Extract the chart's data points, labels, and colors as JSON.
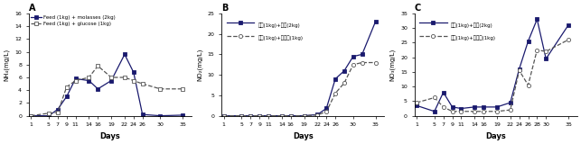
{
  "panel_A": {
    "title": "A",
    "ylabel": "NH₄(mg/L)",
    "xlabel": "Days",
    "ylim": [
      0,
      16
    ],
    "yticks": [
      0,
      2,
      4,
      6,
      8,
      10,
      12,
      14,
      16
    ],
    "xticks": [
      1,
      5,
      7,
      9,
      11,
      14,
      16,
      19,
      22,
      24,
      26,
      30,
      35
    ],
    "series1": {
      "label": "Feed (1kg) + molasses (2kg)",
      "x": [
        1,
        5,
        7,
        9,
        11,
        14,
        16,
        19,
        22,
        24,
        26,
        30,
        35
      ],
      "y": [
        0,
        0,
        1.0,
        3.0,
        5.8,
        5.5,
        4.2,
        5.5,
        9.6,
        6.8,
        0.2,
        0,
        0.1
      ],
      "color": "#1a1a6e",
      "linestyle": "-",
      "marker": "s",
      "markerfacecolor": "#1a1a6e",
      "markersize": 3.5
    },
    "series2": {
      "label": "Feed (1kg) + glucose (1kg)",
      "x": [
        1,
        5,
        7,
        9,
        11,
        14,
        16,
        19,
        22,
        24,
        26,
        30,
        35
      ],
      "y": [
        0,
        0.4,
        0.5,
        4.5,
        5.5,
        6.0,
        7.8,
        6.0,
        6.0,
        5.5,
        5.0,
        4.2,
        4.2
      ],
      "color": "#555555",
      "linestyle": "--",
      "marker": "s",
      "markerfacecolor": "white",
      "markersize": 3.5
    }
  },
  "panel_B": {
    "title": "B",
    "ylabel": "NO₂(mg/L)",
    "xlabel": "Days",
    "ylim": [
      0,
      25
    ],
    "yticks": [
      0,
      5,
      10,
      15,
      20,
      25
    ],
    "xticks": [
      1,
      5,
      7,
      9,
      11,
      14,
      16,
      19,
      22,
      24,
      26,
      30,
      35
    ],
    "series1": {
      "label": "사료(1kg)+당밀(2kg)",
      "x": [
        1,
        5,
        7,
        9,
        11,
        14,
        16,
        19,
        22,
        24,
        26,
        28,
        30,
        32,
        35
      ],
      "y": [
        0,
        0,
        0,
        0,
        0,
        0,
        0,
        0,
        0.3,
        1.8,
        9.0,
        11.0,
        14.5,
        15.0,
        23.0
      ],
      "color": "#1a1a6e",
      "linestyle": "-",
      "marker": "s",
      "markerfacecolor": "#1a1a6e",
      "markersize": 3.0
    },
    "series2": {
      "label": "사료(1kg)+포도당(1kg)",
      "x": [
        1,
        5,
        7,
        9,
        11,
        14,
        16,
        19,
        22,
        24,
        26,
        28,
        30,
        32,
        35
      ],
      "y": [
        0,
        0,
        0,
        0,
        0,
        0,
        0,
        0,
        0.2,
        1.0,
        5.5,
        8.0,
        12.5,
        13.0,
        13.0
      ],
      "color": "#555555",
      "linestyle": "--",
      "marker": "o",
      "markerfacecolor": "white",
      "markersize": 3.0
    }
  },
  "panel_C": {
    "title": "C",
    "ylabel": "NO₃(mg/L)",
    "xlabel": "Days",
    "ylim": [
      0,
      35
    ],
    "yticks": [
      0,
      5,
      10,
      15,
      20,
      25,
      30,
      35
    ],
    "xticks": [
      1,
      5,
      7,
      9,
      11,
      14,
      16,
      19,
      22,
      24,
      26,
      28,
      30,
      35
    ],
    "series1": {
      "label": "사료(1kg)+당밀(2kg)",
      "x": [
        1,
        5,
        7,
        9,
        11,
        14,
        16,
        19,
        22,
        24,
        26,
        28,
        30,
        35
      ],
      "y": [
        3.5,
        1.5,
        8.0,
        3.0,
        2.5,
        3.0,
        3.0,
        3.0,
        4.5,
        16.0,
        25.5,
        33.0,
        19.5,
        31.0
      ],
      "color": "#1a1a6e",
      "linestyle": "-",
      "marker": "s",
      "markerfacecolor": "#1a1a6e",
      "markersize": 3.0
    },
    "series2": {
      "label": "사료(1kg)+포도당(1kg)",
      "x": [
        1,
        5,
        7,
        9,
        11,
        14,
        16,
        19,
        22,
        24,
        26,
        28,
        30,
        35
      ],
      "y": [
        4.5,
        6.2,
        3.0,
        1.5,
        1.5,
        1.5,
        1.5,
        1.5,
        2.0,
        15.5,
        10.5,
        22.5,
        22.0,
        26.0
      ],
      "color": "#555555",
      "linestyle": "--",
      "marker": "o",
      "markerfacecolor": "white",
      "markersize": 3.0
    }
  }
}
